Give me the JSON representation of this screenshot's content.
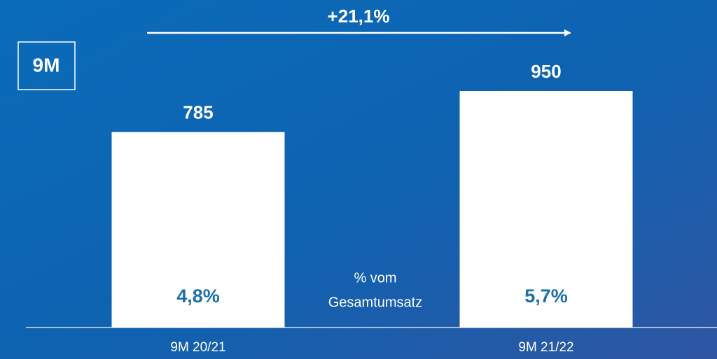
{
  "chart_data": {
    "type": "bar",
    "period_label": "9M",
    "annotation": "+21,1%",
    "categories": [
      "9M 20/21",
      "9M 21/22"
    ],
    "values": [
      785,
      950
    ],
    "color": "#ffffff",
    "shares": [
      4.8,
      5.7
    ],
    "share_labels": [
      "4,8%",
      "5,7%"
    ],
    "share_caption": [
      "% vom",
      "Gesamtumsatz"
    ]
  }
}
